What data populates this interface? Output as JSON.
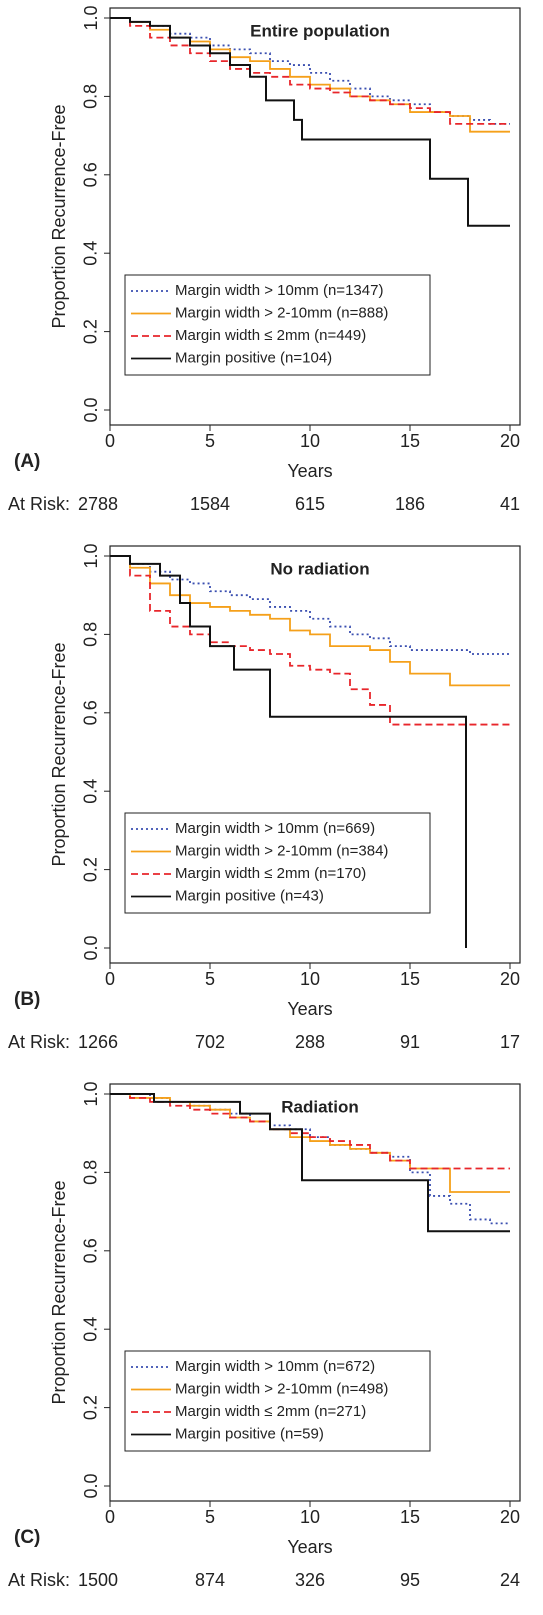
{
  "chart_data": [
    {
      "type": "line",
      "step": true,
      "panel_label": "(A)",
      "title": "Entire population",
      "xlabel": "Years",
      "ylabel": "Proportion Recurrence-Free",
      "xlim": [
        0,
        20
      ],
      "ylim": [
        0,
        1.0
      ],
      "xticks": [
        0,
        5,
        10,
        15,
        20
      ],
      "yticks": [
        {
          "value": 0,
          "label": "0.0"
        },
        {
          "value": 0.2,
          "label": "0.2"
        },
        {
          "value": 0.4,
          "label": "0.4"
        },
        {
          "value": 0.6,
          "label": "0.6"
        },
        {
          "value": 0.8,
          "label": "0.8"
        },
        {
          "value": 1.0,
          "label": "1.0"
        }
      ],
      "legend": "lower left",
      "at_risk_label": "At Risk:",
      "at_risk": [
        2788,
        1584,
        615,
        186,
        41
      ],
      "series": [
        {
          "name": "Margin width > 10mm (n=1347)",
          "color": "#3a4fb0",
          "style": "dotted",
          "x": [
            0,
            1,
            2,
            3,
            4,
            5,
            6,
            7,
            8,
            9,
            10,
            11,
            12,
            13,
            14,
            15,
            16,
            17,
            18,
            19,
            20
          ],
          "values": [
            1,
            0.99,
            0.98,
            0.96,
            0.95,
            0.93,
            0.92,
            0.91,
            0.89,
            0.88,
            0.86,
            0.84,
            0.82,
            0.8,
            0.79,
            0.78,
            0.76,
            0.75,
            0.74,
            0.73,
            0.73
          ]
        },
        {
          "name": "Margin width > 2-10mm (n=888)",
          "color": "#f5a01a",
          "style": "solid",
          "x": [
            0,
            1,
            2,
            3,
            4,
            5,
            6,
            7,
            8,
            9,
            10,
            11,
            12,
            13,
            14,
            15,
            16,
            17,
            18,
            19,
            20
          ],
          "values": [
            1,
            0.99,
            0.97,
            0.95,
            0.94,
            0.92,
            0.9,
            0.89,
            0.87,
            0.85,
            0.83,
            0.82,
            0.8,
            0.79,
            0.78,
            0.76,
            0.76,
            0.75,
            0.71,
            0.71,
            0.71
          ]
        },
        {
          "name": "Margin width ≤ 2mm (n=449)",
          "color": "#e8262b",
          "style": "dashed",
          "x": [
            0,
            1,
            2,
            3,
            4,
            5,
            6,
            7,
            8,
            9,
            10,
            11,
            12,
            13,
            14,
            15,
            16,
            17,
            18,
            19,
            20
          ],
          "values": [
            1,
            0.98,
            0.95,
            0.93,
            0.91,
            0.89,
            0.87,
            0.86,
            0.85,
            0.83,
            0.82,
            0.81,
            0.8,
            0.79,
            0.78,
            0.77,
            0.76,
            0.73,
            0.73,
            0.73,
            0.73
          ]
        },
        {
          "name": "Margin positive (n=104)",
          "color": "#111111",
          "style": "solid",
          "x": [
            0,
            1,
            2,
            3,
            4,
            5,
            6,
            7,
            7.8,
            9.2,
            9.6,
            16,
            17.9,
            20
          ],
          "values": [
            1,
            0.99,
            0.98,
            0.95,
            0.93,
            0.91,
            0.88,
            0.85,
            0.79,
            0.74,
            0.69,
            0.59,
            0.47,
            0.47
          ]
        }
      ]
    },
    {
      "type": "line",
      "step": true,
      "panel_label": "(B)",
      "title": "No radiation",
      "xlabel": "Years",
      "ylabel": "Proportion Recurrence-Free",
      "xlim": [
        0,
        20
      ],
      "ylim": [
        0,
        1.0
      ],
      "xticks": [
        0,
        5,
        10,
        15,
        20
      ],
      "yticks": [
        {
          "value": 0,
          "label": "0.0"
        },
        {
          "value": 0.2,
          "label": "0.2"
        },
        {
          "value": 0.4,
          "label": "0.4"
        },
        {
          "value": 0.6,
          "label": "0.6"
        },
        {
          "value": 0.8,
          "label": "0.8"
        },
        {
          "value": 1.0,
          "label": "1.0"
        }
      ],
      "legend": "lower left",
      "at_risk_label": "At Risk:",
      "at_risk": [
        1266,
        702,
        288,
        91,
        17
      ],
      "series": [
        {
          "name": "Margin width > 10mm (n=669)",
          "color": "#3a4fb0",
          "style": "dotted",
          "x": [
            0,
            1,
            2,
            3,
            4,
            5,
            6,
            7,
            8,
            9,
            10,
            11,
            12,
            13,
            14,
            15,
            16,
            17,
            18,
            19,
            20
          ],
          "values": [
            1,
            0.98,
            0.96,
            0.94,
            0.93,
            0.91,
            0.9,
            0.89,
            0.87,
            0.86,
            0.84,
            0.82,
            0.8,
            0.79,
            0.77,
            0.76,
            0.76,
            0.76,
            0.75,
            0.75,
            0.75
          ]
        },
        {
          "name": "Margin width > 2-10mm (n=384)",
          "color": "#f5a01a",
          "style": "solid",
          "x": [
            0,
            1,
            2,
            3,
            4,
            5,
            6,
            7,
            8,
            9,
            10,
            11,
            12,
            13,
            14,
            15,
            16,
            17,
            18,
            19,
            20
          ],
          "values": [
            1,
            0.97,
            0.93,
            0.9,
            0.88,
            0.87,
            0.86,
            0.85,
            0.84,
            0.81,
            0.8,
            0.77,
            0.77,
            0.76,
            0.73,
            0.7,
            0.7,
            0.67,
            0.67,
            0.67,
            0.67
          ]
        },
        {
          "name": "Margin width ≤ 2mm (n=170)",
          "color": "#e8262b",
          "style": "dashed",
          "x": [
            0,
            1,
            2,
            3,
            4,
            5,
            6,
            7,
            8,
            9,
            10,
            11,
            12,
            13,
            14,
            15,
            16,
            17,
            18,
            19,
            20
          ],
          "values": [
            1,
            0.95,
            0.86,
            0.82,
            0.8,
            0.78,
            0.77,
            0.76,
            0.75,
            0.72,
            0.71,
            0.7,
            0.66,
            0.62,
            0.57,
            0.57,
            0.57,
            0.57,
            0.57,
            0.57,
            0.57
          ]
        },
        {
          "name": "Margin positive (n=43)",
          "color": "#111111",
          "style": "solid",
          "x": [
            0,
            1,
            2.5,
            3.5,
            4,
            5,
            6.2,
            8,
            17.8,
            17.8
          ],
          "values": [
            1,
            0.98,
            0.95,
            0.88,
            0.82,
            0.77,
            0.71,
            0.59,
            0.59,
            0
          ]
        }
      ]
    },
    {
      "type": "line",
      "step": true,
      "panel_label": "(C)",
      "title": "Radiation",
      "xlabel": "Years",
      "ylabel": "Proportion Recurrence-Free",
      "xlim": [
        0,
        20
      ],
      "ylim": [
        0,
        1.0
      ],
      "xticks": [
        0,
        5,
        10,
        15,
        20
      ],
      "yticks": [
        {
          "value": 0,
          "label": "0.0"
        },
        {
          "value": 0.2,
          "label": "0.2"
        },
        {
          "value": 0.4,
          "label": "0.4"
        },
        {
          "value": 0.6,
          "label": "0.6"
        },
        {
          "value": 0.8,
          "label": "0.8"
        },
        {
          "value": 1.0,
          "label": "1.0"
        }
      ],
      "legend": "lower left",
      "at_risk_label": "At Risk:",
      "at_risk": [
        1500,
        874,
        326,
        95,
        24
      ],
      "series": [
        {
          "name": "Margin width > 10mm (n=672)",
          "color": "#3a4fb0",
          "style": "dotted",
          "x": [
            0,
            1,
            2,
            3,
            4,
            5,
            6,
            7,
            8,
            9,
            10,
            11,
            12,
            13,
            14,
            15,
            16,
            17,
            18,
            19,
            20
          ],
          "values": [
            1,
            1,
            0.99,
            0.98,
            0.97,
            0.96,
            0.95,
            0.93,
            0.92,
            0.91,
            0.89,
            0.87,
            0.86,
            0.85,
            0.84,
            0.8,
            0.74,
            0.72,
            0.68,
            0.67,
            0.67
          ]
        },
        {
          "name": "Margin width > 2-10mm (n=498)",
          "color": "#f5a01a",
          "style": "solid",
          "x": [
            0,
            1,
            2,
            3,
            4,
            5,
            6,
            7,
            8,
            9,
            10,
            11,
            12,
            13,
            14,
            15,
            16,
            17,
            18,
            19,
            20
          ],
          "values": [
            1,
            0.99,
            0.99,
            0.98,
            0.97,
            0.96,
            0.94,
            0.93,
            0.91,
            0.89,
            0.88,
            0.87,
            0.86,
            0.85,
            0.83,
            0.81,
            0.81,
            0.75,
            0.75,
            0.75,
            0.75
          ]
        },
        {
          "name": "Margin width ≤ 2mm (n=271)",
          "color": "#e8262b",
          "style": "dashed",
          "x": [
            0,
            1,
            2,
            3,
            4,
            5,
            6,
            7,
            8,
            9,
            10,
            11,
            12,
            13,
            14,
            15,
            16,
            17,
            18,
            19,
            20
          ],
          "values": [
            1,
            0.99,
            0.98,
            0.97,
            0.96,
            0.95,
            0.94,
            0.93,
            0.91,
            0.9,
            0.89,
            0.88,
            0.87,
            0.85,
            0.83,
            0.81,
            0.81,
            0.81,
            0.81,
            0.81,
            0.81
          ]
        },
        {
          "name": "Margin positive (n=59)",
          "color": "#111111",
          "style": "solid",
          "x": [
            0,
            2.2,
            6.5,
            8,
            9.6,
            15.9,
            20
          ],
          "values": [
            1,
            0.98,
            0.95,
            0.91,
            0.78,
            0.65,
            0.65
          ]
        }
      ]
    }
  ]
}
